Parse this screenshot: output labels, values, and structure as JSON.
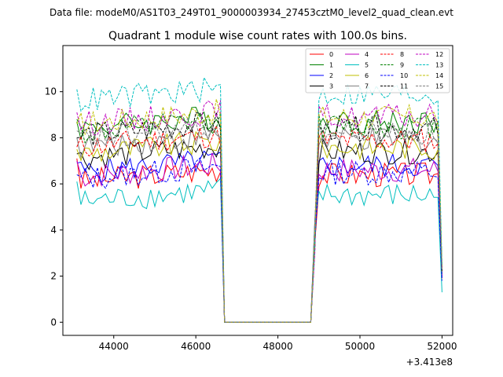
{
  "suptitle": "Data file: modeM0/AS1T03_249T01_9000003934_27453cztM0_level2_quad_clean.evt",
  "chart_data": {
    "type": "line",
    "title": "Quadrant 1 module wise count rates with 100.0s bins.",
    "xlabel": "",
    "ylabel": "",
    "x_offset_label": "+3.413e8",
    "xlim": [
      42760,
      52260
    ],
    "ylim": [
      -0.57,
      12.0
    ],
    "x_ticks": [
      44000,
      46000,
      48000,
      50000,
      52000
    ],
    "x_tick_labels": [
      "44000",
      "46000",
      "48000",
      "50000",
      "52000"
    ],
    "y_ticks": [
      0,
      2,
      4,
      6,
      8,
      10
    ],
    "y_tick_labels": [
      "0",
      "2",
      "4",
      "6",
      "8",
      "10"
    ],
    "grid": false,
    "legend_position": "top-right",
    "legend_columns": 4,
    "segments": [
      {
        "x_start": 43100,
        "x_end": 46600,
        "count": 36
      },
      {
        "x_start": 46700,
        "x_end": 48800,
        "count": 22
      },
      {
        "x_start": 48900,
        "x_end": 52000,
        "count": 32
      }
    ],
    "series": [
      {
        "name": "0",
        "color": "#ff0000",
        "dash": "solid",
        "active_mean": 6.4,
        "start": 7.1,
        "end": 1.9
      },
      {
        "name": "1",
        "color": "#008000",
        "dash": "solid",
        "active_mean": 8.7,
        "start": 8.7,
        "end": 2.2
      },
      {
        "name": "2",
        "color": "#0000ff",
        "dash": "solid",
        "active_mean": 6.8,
        "start": 6.9,
        "end": 2.0
      },
      {
        "name": "3",
        "color": "#000000",
        "dash": "solid",
        "active_mean": 7.4,
        "start": 7.3,
        "end": 2.1
      },
      {
        "name": "4",
        "color": "#bf00bf",
        "dash": "solid",
        "active_mean": 6.6,
        "start": 7.0,
        "end": 2.0
      },
      {
        "name": "5",
        "color": "#00bfbf",
        "dash": "solid",
        "active_mean": 5.5,
        "start": 6.1,
        "end": 1.3
      },
      {
        "name": "6",
        "color": "#bfbf00",
        "dash": "solid",
        "active_mean": 7.6,
        "start": 7.5,
        "end": 2.1
      },
      {
        "name": "7",
        "color": "#808080",
        "dash": "solid",
        "active_mean": 7.9,
        "start": 8.0,
        "end": 2.1
      },
      {
        "name": "8",
        "color": "#ff0000",
        "dash": "dashed",
        "active_mean": 7.9,
        "start": 7.6,
        "end": 2.2
      },
      {
        "name": "9",
        "color": "#008000",
        "dash": "dashed",
        "active_mean": 8.5,
        "start": 8.8,
        "end": 2.3
      },
      {
        "name": "10",
        "color": "#0000ff",
        "dash": "dashed",
        "active_mean": 6.5,
        "start": 6.4,
        "end": 1.8
      },
      {
        "name": "11",
        "color": "#000000",
        "dash": "dashed",
        "active_mean": 8.4,
        "start": 8.0,
        "end": 2.2
      },
      {
        "name": "12",
        "color": "#bf00bf",
        "dash": "dashed",
        "active_mean": 8.9,
        "start": 9.1,
        "end": 2.3
      },
      {
        "name": "13",
        "color": "#00bfbf",
        "dash": "dashed",
        "active_mean": 9.9,
        "start": 10.1,
        "end": 2.5
      },
      {
        "name": "14",
        "color": "#bfbf00",
        "dash": "dashed",
        "active_mean": 8.9,
        "start": 8.6,
        "end": 2.3
      },
      {
        "name": "15",
        "color": "#808080",
        "dash": "dashed",
        "active_mean": 8.2,
        "start": 8.3,
        "end": 2.2
      }
    ]
  }
}
